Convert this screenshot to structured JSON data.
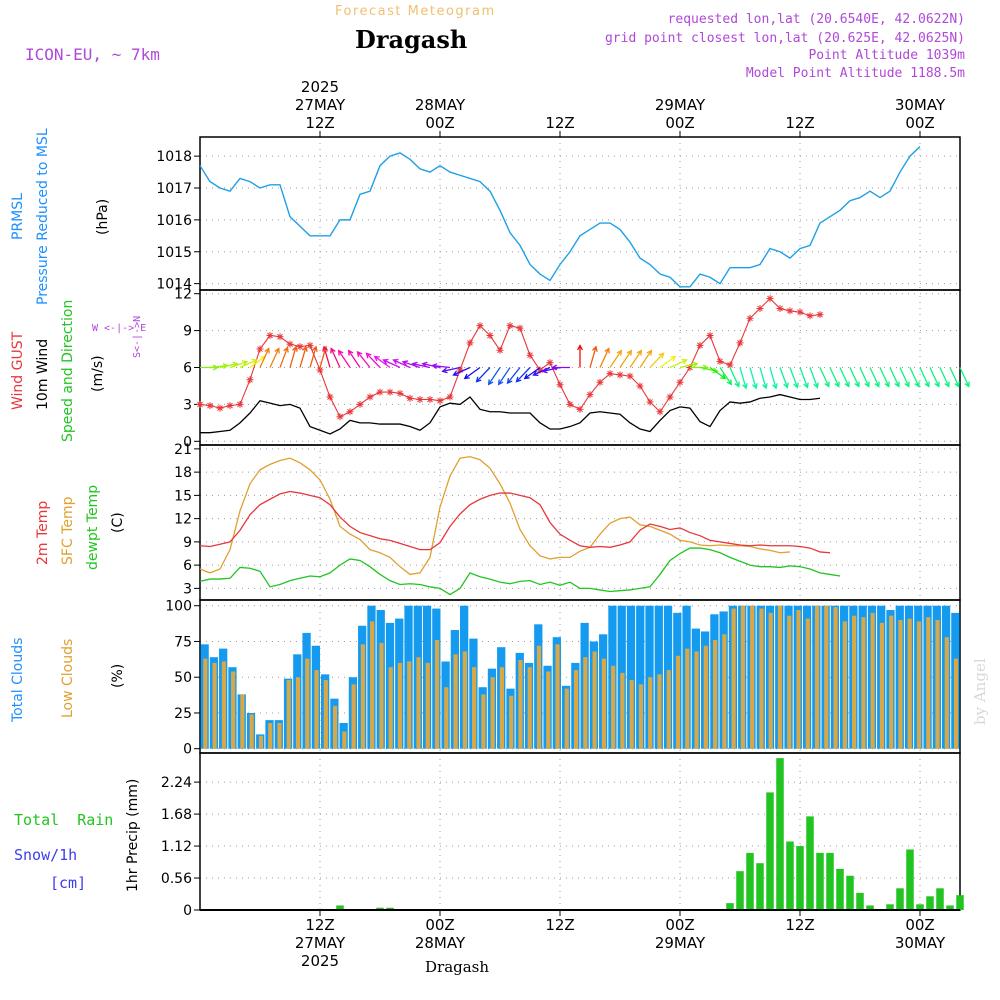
{
  "header": {
    "subtitle": "Forecast Meteogram",
    "location": "Dragash",
    "model": "ICON-EU, ~ 7km",
    "requested": "requested lon,lat (20.6540E, 42.0622N)",
    "grid_point": "grid point closest lon,lat (20.625E, 42.0625N)",
    "point_altitude": "Point Altitude 1039m",
    "model_altitude": "Model Point Altitude 1188.5m",
    "footer_location": "Dragash",
    "watermark": "by Angel"
  },
  "time_axis": {
    "top_labels": [
      {
        "lines": [
          "2025",
          "27MAY",
          "12Z"
        ],
        "hour": 12
      },
      {
        "lines": [
          "28MAY",
          "00Z"
        ],
        "hour": 24
      },
      {
        "lines": [
          "12Z"
        ],
        "hour": 36
      },
      {
        "lines": [
          "29MAY",
          "00Z"
        ],
        "hour": 48
      },
      {
        "lines": [
          "12Z"
        ],
        "hour": 60
      },
      {
        "lines": [
          "30MAY",
          "00Z"
        ],
        "hour": 72
      }
    ],
    "bottom_labels": [
      {
        "lines": [
          "12Z",
          "27MAY",
          "2025"
        ],
        "hour": 12
      },
      {
        "lines": [
          "00Z",
          "28MAY"
        ],
        "hour": 24
      },
      {
        "lines": [
          "12Z"
        ],
        "hour": 36
      },
      {
        "lines": [
          "00Z",
          "29MAY"
        ],
        "hour": 48
      },
      {
        "lines": [
          "12Z"
        ],
        "hour": 60
      },
      {
        "lines": [
          "00Z",
          "30MAY"
        ],
        "hour": 72
      }
    ]
  },
  "panel_labels": {
    "pressure": [
      {
        "text": "PRMSL",
        "color": "#1e90ff"
      },
      {
        "text": "Pressure Reduced to MSL",
        "color": "#1e90ff"
      },
      {
        "text": "(hPa)",
        "color": "#000000"
      }
    ],
    "wind": [
      {
        "text": "Wind GUST",
        "color": "#e8373b"
      },
      {
        "text": "10m Wind",
        "color": "#000000"
      },
      {
        "text": "Speed and Direction",
        "color": "#22c422"
      },
      {
        "text": "(m/s)",
        "color": "#000000"
      }
    ],
    "wind_compass": "W <-|-> E",
    "wind_compass_v": "S<-|->N",
    "temp": [
      {
        "text": "2m Temp",
        "color": "#e8373b"
      },
      {
        "text": "SFC Temp",
        "color": "#e0a030"
      },
      {
        "text": "dewpt Temp",
        "color": "#22c422"
      },
      {
        "text": "(C)",
        "color": "#000000"
      }
    ],
    "clouds": [
      {
        "text": "Total Clouds",
        "color": "#1e90ff"
      },
      {
        "text": "Low Clouds",
        "color": "#e0a030"
      },
      {
        "text": "(%)",
        "color": "#000000"
      }
    ],
    "precip_total": "Total  Rain",
    "precip_snow": "Snow/1h",
    "precip_cm": "[cm]",
    "precip_axis": "1hr Precip (mm)"
  },
  "colors": {
    "pressure": "#1ea0e6",
    "gust": "#e8373b",
    "wind": "#000000",
    "temp2m": "#e8373b",
    "sfc": "#e0a030",
    "dewpt": "#22c422",
    "total_clouds": "#149bf0",
    "low_clouds": "#d8a848",
    "rain": "#22c422",
    "snow": "#3c3cf0",
    "header_orange": "#f0c070",
    "header_purple": "#b048d8"
  },
  "chart_data": [
    {
      "type": "line",
      "name": "pressure",
      "ylim": [
        1013.8,
        1018.6
      ],
      "yticks": [
        1014,
        1015,
        1016,
        1017,
        1018
      ],
      "x_hours": [
        0,
        1,
        2,
        3,
        4,
        5,
        6,
        7,
        8,
        9,
        10,
        11,
        12,
        13,
        14,
        15,
        16,
        17,
        18,
        19,
        20,
        21,
        22,
        23,
        24,
        25,
        26,
        27,
        28,
        29,
        30,
        31,
        32,
        33,
        34,
        35,
        36,
        37,
        38,
        39,
        40,
        41,
        42,
        43,
        44,
        45,
        46,
        47,
        48,
        49,
        50,
        51,
        52,
        53,
        54,
        55,
        56,
        57,
        58,
        59,
        60,
        61,
        62,
        63,
        64,
        65,
        66,
        67,
        68,
        69,
        70,
        71,
        72,
        73,
        74,
        75,
        76
      ],
      "series": [
        {
          "values": [
            1017.7,
            1017.2,
            1017.0,
            1016.9,
            1017.3,
            1017.2,
            1017.0,
            1017.1,
            1017.1,
            1016.1,
            1015.8,
            1015.5,
            1015.5,
            1015.5,
            1016.0,
            1016.0,
            1016.8,
            1016.9,
            1017.7,
            1018.0,
            1018.1,
            1017.9,
            1017.6,
            1017.5,
            1017.7,
            1017.5,
            1017.4,
            1017.3,
            1017.2,
            1016.9,
            1016.3,
            1015.6,
            1015.2,
            1014.6,
            1014.3,
            1014.1,
            1014.6,
            1015.0,
            1015.5,
            1015.7,
            1015.9,
            1015.9,
            1015.7,
            1015.3,
            1014.8,
            1014.6,
            1014.3,
            1014.2,
            1013.9,
            1013.9,
            1014.3,
            1014.2,
            1014.0,
            1014.5,
            1014.5,
            1014.5,
            1014.6,
            1015.1,
            1015.0,
            1014.8,
            1015.1,
            1015.2,
            1015.9,
            1016.1,
            1016.3,
            1016.6,
            1016.7,
            1016.9,
            1016.7,
            1016.9,
            1017.5,
            1018.0,
            1018.3
          ]
        }
      ]
    },
    {
      "type": "line",
      "name": "wind",
      "ylim": [
        -0.3,
        12.3
      ],
      "yticks": [
        0,
        3,
        6,
        9,
        12
      ],
      "x_hours": [
        0,
        1,
        2,
        3,
        4,
        5,
        6,
        7,
        8,
        9,
        10,
        11,
        12,
        13,
        14,
        15,
        16,
        17,
        18,
        19,
        20,
        21,
        22,
        23,
        24,
        25,
        26,
        27,
        28,
        29,
        30,
        31,
        32,
        33,
        34,
        35,
        36,
        37,
        38,
        39,
        40,
        41,
        42,
        43,
        44,
        45,
        46,
        47,
        48,
        49,
        50,
        51,
        52,
        53,
        54,
        55,
        56,
        57,
        58,
        59,
        60,
        61,
        62,
        63,
        64,
        65,
        66,
        67,
        68,
        69,
        70,
        71,
        72,
        73,
        74,
        75,
        76
      ],
      "series": [
        {
          "values": [
            3.0,
            2.9,
            2.7,
            2.9,
            3.0,
            5.0,
            7.5,
            8.6,
            8.5,
            7.9,
            7.7,
            7.8,
            5.8,
            3.6,
            2.0,
            2.4,
            3.0,
            3.6,
            4.0,
            4.0,
            3.9,
            3.5,
            3.4,
            3.4,
            3.3,
            3.6,
            5.8,
            8.0,
            9.4,
            8.6,
            7.4,
            9.4,
            9.2,
            7.0,
            5.8,
            6.4,
            4.6,
            3.0,
            2.6,
            3.8,
            4.8,
            5.5,
            5.4,
            5.3,
            4.5,
            3.2,
            2.4,
            3.6,
            4.8,
            6.0,
            7.8,
            8.6,
            6.5,
            6.2,
            8.0,
            10.0,
            10.8,
            11.6,
            10.8,
            10.6,
            10.5,
            10.2,
            10.3
          ]
        },
        {
          "values": [
            0.7,
            0.7,
            0.8,
            0.9,
            1.5,
            2.3,
            3.3,
            3.1,
            2.9,
            3.0,
            2.7,
            1.2,
            0.9,
            0.6,
            1.0,
            1.7,
            1.5,
            1.5,
            1.4,
            1.4,
            1.4,
            1.2,
            0.9,
            1.5,
            2.8,
            3.1,
            3.0,
            3.6,
            2.6,
            2.4,
            2.4,
            2.3,
            2.3,
            2.3,
            1.5,
            1.0,
            1.0,
            1.2,
            1.5,
            2.3,
            2.4,
            2.3,
            2.2,
            1.5,
            1.0,
            0.8,
            1.7,
            2.5,
            2.8,
            2.7,
            1.6,
            1.2,
            2.5,
            3.2,
            3.1,
            3.2,
            3.5,
            3.6,
            3.8,
            3.6,
            3.4,
            3.4,
            3.5
          ]
        }
      ],
      "arrow_dirs": [
        270,
        265,
        260,
        255,
        250,
        240,
        210,
        210,
        205,
        200,
        200,
        200,
        200,
        160,
        150,
        140,
        140,
        135,
        130,
        120,
        110,
        110,
        105,
        100,
        100,
        95,
        80,
        70,
        60,
        50,
        40,
        40,
        45,
        50,
        60,
        70,
        80,
        90,
        180,
        200,
        210,
        220,
        220,
        220,
        220,
        230,
        240,
        250,
        260,
        270,
        280,
        300,
        320,
        330,
        340,
        340,
        340,
        340,
        335,
        335,
        335,
        335,
        330,
        330,
        330,
        330,
        330,
        330,
        330,
        330,
        330,
        330,
        330,
        330,
        330,
        330,
        330
      ]
    },
    {
      "type": "line",
      "name": "temperature",
      "ylim": [
        1.5,
        21.5
      ],
      "yticks": [
        3,
        6,
        9,
        12,
        15,
        18,
        21
      ],
      "x_hours": [
        0,
        1,
        2,
        3,
        4,
        5,
        6,
        7,
        8,
        9,
        10,
        11,
        12,
        13,
        14,
        15,
        16,
        17,
        18,
        19,
        20,
        21,
        22,
        23,
        24,
        25,
        26,
        27,
        28,
        29,
        30,
        31,
        32,
        33,
        34,
        35,
        36,
        37,
        38,
        39,
        40,
        41,
        42,
        43,
        44,
        45,
        46,
        47,
        48,
        49,
        50,
        51,
        52,
        53,
        54,
        55,
        56,
        57,
        58,
        59,
        60,
        61,
        62,
        63,
        64,
        65,
        66,
        67,
        68,
        69,
        70,
        71,
        72,
        73,
        74,
        75,
        76
      ],
      "series": [
        {
          "values": [
            8.5,
            8.4,
            8.7,
            9.0,
            10.5,
            12.5,
            13.8,
            14.5,
            15.2,
            15.5,
            15.3,
            15.0,
            14.7,
            13.8,
            12.2,
            11.0,
            10.2,
            9.8,
            9.4,
            9.2,
            8.8,
            8.4,
            8.0,
            8.0,
            8.9,
            11.0,
            12.6,
            13.8,
            14.5,
            15.0,
            15.3,
            15.3,
            15.0,
            14.7,
            13.8,
            11.5,
            10.0,
            9.2,
            8.5,
            8.3,
            8.4,
            8.3,
            8.6,
            9.0,
            10.5,
            11.3,
            11.0,
            10.6,
            10.8,
            10.2,
            9.8,
            9.2,
            9.0,
            8.8,
            8.6,
            8.5,
            8.6,
            8.5,
            8.5,
            8.5,
            8.4,
            8.2,
            7.7,
            7.6
          ]
        },
        {
          "values": [
            5.5,
            5.0,
            5.5,
            8.0,
            13.0,
            16.5,
            18.3,
            19.0,
            19.5,
            19.8,
            19.2,
            18.3,
            17.0,
            14.5,
            11.0,
            10.0,
            9.3,
            8.0,
            7.6,
            7.0,
            5.8,
            4.8,
            5.0,
            7.0,
            13.5,
            17.5,
            19.8,
            20.0,
            19.6,
            18.5,
            16.5,
            14.0,
            10.6,
            8.5,
            7.2,
            6.8,
            7.0,
            7.0,
            7.8,
            8.3,
            10.0,
            11.4,
            12.0,
            12.2,
            11.2,
            11.0,
            10.5,
            10.0,
            9.2,
            9.0,
            8.6,
            8.5,
            8.6,
            8.5,
            8.5,
            8.4,
            8.1,
            7.9,
            7.6,
            7.7
          ]
        },
        {
          "values": [
            3.9,
            4.2,
            4.2,
            4.3,
            5.7,
            5.6,
            5.2,
            3.2,
            3.5,
            4.0,
            4.3,
            4.6,
            4.5,
            5.0,
            6.0,
            6.8,
            6.6,
            5.8,
            4.8,
            4.0,
            3.5,
            3.6,
            3.5,
            3.2,
            3.0,
            2.2,
            3.0,
            5.0,
            4.5,
            4.2,
            3.8,
            3.6,
            3.9,
            4.0,
            3.5,
            3.8,
            3.4,
            3.8,
            3.0,
            3.0,
            2.8,
            2.6,
            2.7,
            2.8,
            3.0,
            3.2,
            4.8,
            6.6,
            7.5,
            8.2,
            8.2,
            8.0,
            7.6,
            7.0,
            6.5,
            6.0,
            5.8,
            5.8,
            5.7,
            5.9,
            5.8,
            5.5,
            5.0,
            4.8,
            4.6
          ]
        }
      ]
    },
    {
      "type": "bar",
      "name": "clouds",
      "ylim": [
        -3,
        104
      ],
      "yticks": [
        0,
        25,
        50,
        75,
        100
      ],
      "series": [
        {
          "values": [
            73,
            64,
            70,
            57,
            38,
            25,
            10,
            20,
            20,
            49,
            66,
            81,
            72,
            52,
            35,
            18,
            50,
            86,
            100,
            97,
            88,
            91,
            100,
            100,
            100,
            98,
            61,
            83,
            100,
            77,
            43,
            56,
            71,
            42,
            67,
            60,
            87,
            58,
            78,
            44,
            60,
            88,
            75,
            80,
            100,
            100,
            100,
            100,
            100,
            100,
            100,
            95,
            100,
            84,
            82,
            94,
            96,
            100,
            100,
            100,
            100,
            100,
            100,
            100,
            100,
            100,
            100,
            100,
            100,
            100,
            100,
            100,
            100,
            100,
            97,
            100,
            100,
            100,
            100,
            100,
            100,
            95
          ]
        },
        {
          "values": [
            63,
            60,
            61,
            54,
            38,
            24,
            9,
            18,
            18,
            48,
            50,
            63,
            55,
            48,
            30,
            12,
            45,
            73,
            89,
            74,
            57,
            60,
            61,
            64,
            60,
            76,
            43,
            66,
            68,
            57,
            38,
            50,
            57,
            37,
            62,
            57,
            72,
            54,
            73,
            42,
            55,
            64,
            68,
            63,
            58,
            53,
            48,
            45,
            50,
            52,
            55,
            65,
            70,
            68,
            72,
            76,
            80,
            98,
            100,
            100,
            98,
            95,
            100,
            93,
            97,
            91,
            100,
            100,
            99,
            89,
            93,
            92,
            95,
            88,
            93,
            90,
            91,
            89,
            92,
            90,
            78,
            63
          ]
        }
      ]
    },
    {
      "type": "bar",
      "name": "precipitation",
      "ylim": [
        0,
        2.75
      ],
      "yticks": [
        0,
        0.56,
        1.12,
        1.68,
        2.24
      ],
      "x_hours": [
        12,
        14,
        18,
        19,
        53,
        54,
        55,
        56,
        57,
        58,
        59,
        60,
        61,
        62,
        63,
        64,
        65,
        66,
        67,
        68,
        69,
        70,
        71,
        72,
        73,
        74,
        75,
        76
      ],
      "series": [
        {
          "values": [
            0.02,
            0.08,
            0.04,
            0.04,
            0.12,
            0.68,
            1.0,
            0.82,
            2.06,
            2.66,
            1.2,
            1.12,
            1.64,
            1.0,
            1.0,
            0.72,
            0.6,
            0.3,
            0.08,
            0.0,
            0.1,
            0.38,
            1.06,
            0.1,
            0.24,
            0.38,
            0.08,
            0.26
          ]
        }
      ]
    }
  ]
}
